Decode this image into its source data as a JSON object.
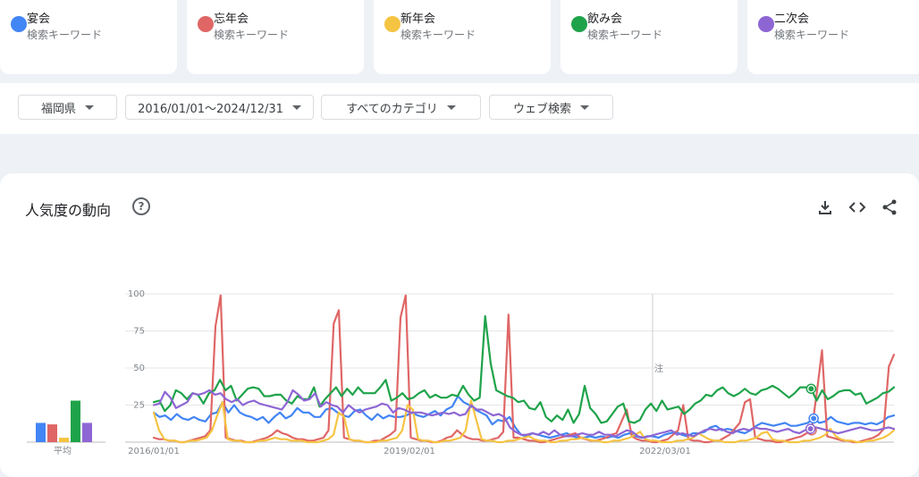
{
  "terms": [
    {
      "name": "宴会",
      "type": "検索キーワード",
      "color": "#4285f4"
    },
    {
      "name": "忘年会",
      "type": "検索キーワード",
      "color": "#e06666"
    },
    {
      "name": "新年会",
      "type": "検索キーワード",
      "color": "#f6c443"
    },
    {
      "name": "飲み会",
      "type": "検索キーワード",
      "color": "#1fa34a"
    },
    {
      "name": "二次会",
      "type": "検索キーワード",
      "color": "#8e66d4"
    }
  ],
  "filters": {
    "region": "福岡県",
    "date_range": "2016/01/01〜2024/12/31",
    "category": "すべてのカテゴリ",
    "search_type": "ウェブ検索"
  },
  "section": {
    "title": "人気度の動向",
    "help_icon": "help-circle-icon",
    "actions": [
      "download-icon",
      "embed-code-icon",
      "share-icon"
    ]
  },
  "chart_data": {
    "type": "line",
    "x_ticks": [
      "2016/01/01",
      "2019/02/01",
      "2022/03/01"
    ],
    "y_ticks": [
      "100",
      "75",
      "50",
      "25"
    ],
    "ylim": [
      0,
      100
    ],
    "grid": true,
    "note_marker": "注",
    "average": {
      "label": "平均",
      "values": [
        13,
        12,
        3,
        28,
        13
      ]
    },
    "series": [
      {
        "name": "宴会",
        "color": "#4285f4",
        "values": [
          20,
          17,
          18,
          15,
          19,
          16,
          15,
          17,
          15,
          14,
          19,
          20,
          27,
          20,
          25,
          20,
          18,
          17,
          15,
          17,
          13,
          17,
          20,
          16,
          18,
          23,
          20,
          20,
          17,
          17,
          22,
          23,
          20,
          18,
          17,
          21,
          22,
          18,
          15,
          19,
          16,
          18,
          17,
          17,
          18,
          20,
          18,
          17,
          19,
          21,
          18,
          22,
          24,
          31,
          27,
          25,
          22,
          20,
          18,
          12,
          15,
          14,
          17,
          10,
          5,
          4,
          6,
          5,
          4,
          3,
          4,
          5,
          6,
          4,
          3,
          3,
          4,
          3,
          4,
          3,
          4,
          3,
          5,
          6,
          4,
          3,
          4,
          4,
          3,
          5,
          6,
          7,
          5,
          4,
          6,
          6,
          7,
          10,
          11,
          8,
          9,
          8,
          7,
          6,
          8,
          11,
          13,
          12,
          11,
          12,
          13,
          11,
          11,
          12,
          13,
          16,
          13,
          14,
          17,
          14,
          13,
          12,
          13,
          13,
          12,
          13,
          12,
          14,
          17,
          18
        ]
      },
      {
        "name": "忘年会",
        "color": "#e06666",
        "values": [
          3,
          2,
          2,
          1,
          1,
          0,
          0,
          1,
          2,
          3,
          4,
          8,
          78,
          99,
          3,
          2,
          1,
          1,
          0,
          0,
          1,
          2,
          3,
          5,
          8,
          6,
          5,
          3,
          2,
          2,
          1,
          1,
          2,
          3,
          8,
          80,
          89,
          3,
          2,
          1,
          1,
          0,
          0,
          1,
          1,
          3,
          5,
          8,
          84,
          99,
          3,
          2,
          1,
          1,
          0,
          0,
          1,
          3,
          4,
          8,
          5,
          3,
          2,
          2,
          1,
          1,
          2,
          3,
          7,
          86,
          3,
          3,
          2,
          1,
          1,
          0,
          0,
          1,
          2,
          3,
          4,
          5,
          6,
          3,
          2,
          1,
          1,
          2,
          3,
          5,
          6,
          14,
          22,
          4,
          2,
          1,
          1,
          0,
          0,
          1,
          2,
          5,
          8,
          25,
          2,
          1,
          1,
          0,
          0,
          1,
          1,
          3,
          5,
          9,
          13,
          27,
          29,
          3,
          2,
          1,
          1,
          0,
          0,
          1,
          2,
          3,
          4,
          6,
          8,
          34,
          62,
          4,
          3,
          2,
          1,
          1,
          0,
          0,
          1,
          2,
          3,
          5,
          9,
          51,
          59
        ]
      },
      {
        "name": "新年会",
        "color": "#f6c443",
        "values": [
          20,
          8,
          2,
          1,
          1,
          0,
          0,
          1,
          1,
          2,
          3,
          8,
          18,
          27,
          2,
          1,
          1,
          0,
          0,
          0,
          1,
          1,
          2,
          3,
          2,
          2,
          1,
          1,
          1,
          0,
          0,
          0,
          1,
          2,
          5,
          20,
          17,
          2,
          1,
          1,
          0,
          0,
          0,
          1,
          1,
          2,
          3,
          8,
          25,
          22,
          2,
          1,
          1,
          0,
          0,
          1,
          1,
          2,
          3,
          8,
          28,
          15,
          2,
          1,
          1,
          0,
          0,
          1,
          1,
          2,
          3,
          4,
          2,
          1,
          1,
          0,
          0,
          1,
          1,
          2,
          2,
          3,
          2,
          1,
          1,
          0,
          0,
          1,
          1,
          2,
          3,
          5,
          7,
          2,
          1,
          1,
          0,
          0,
          0,
          1,
          1,
          2,
          3,
          6,
          4,
          2,
          1,
          1,
          0,
          0,
          0,
          1,
          1,
          2,
          3,
          6,
          7,
          2,
          1,
          1,
          0,
          0,
          0,
          1,
          1,
          2,
          3,
          5,
          9,
          4,
          2,
          1,
          1,
          0,
          0,
          1,
          1,
          2,
          3,
          5,
          8
        ]
      },
      {
        "name": "飲み会",
        "color": "#1fa34a",
        "values": [
          27,
          28,
          21,
          25,
          35,
          33,
          29,
          33,
          32,
          26,
          33,
          35,
          42,
          35,
          38,
          28,
          32,
          36,
          37,
          36,
          31,
          31,
          32,
          32,
          28,
          26,
          31,
          29,
          29,
          37,
          24,
          29,
          33,
          37,
          31,
          36,
          32,
          37,
          33,
          33,
          33,
          37,
          42,
          28,
          30,
          33,
          29,
          30,
          33,
          35,
          30,
          32,
          30,
          30,
          32,
          31,
          38,
          32,
          28,
          30,
          85,
          53,
          35,
          33,
          31,
          30,
          27,
          28,
          23,
          22,
          27,
          17,
          14,
          18,
          15,
          22,
          13,
          19,
          38,
          23,
          19,
          13,
          14,
          19,
          24,
          26,
          14,
          13,
          15,
          22,
          26,
          21,
          28,
          22,
          23,
          24,
          19,
          22,
          26,
          28,
          32,
          31,
          35,
          37,
          33,
          31,
          33,
          36,
          33,
          32,
          35,
          36,
          38,
          36,
          33,
          30,
          33,
          37,
          37,
          36,
          28,
          35,
          29,
          31,
          34,
          35,
          35,
          32,
          33,
          26,
          28,
          30,
          33,
          34,
          37
        ]
      },
      {
        "name": "二次会",
        "color": "#8e66d4",
        "values": [
          25,
          26,
          34,
          30,
          23,
          25,
          27,
          33,
          32,
          33,
          35,
          32,
          33,
          29,
          27,
          29,
          25,
          27,
          28,
          26,
          25,
          24,
          23,
          22,
          27,
          35,
          32,
          28,
          29,
          33,
          24,
          27,
          25,
          24,
          20,
          25,
          22,
          20,
          22,
          23,
          24,
          26,
          25,
          20,
          23,
          22,
          20,
          20,
          20,
          19,
          18,
          19,
          20,
          19,
          20,
          18,
          19,
          25,
          22,
          22,
          20,
          18,
          19,
          17,
          10,
          7,
          5,
          5,
          6,
          5,
          7,
          5,
          8,
          5,
          4,
          4,
          5,
          6,
          5,
          5,
          7,
          5,
          5,
          4,
          6,
          8,
          7,
          4,
          3,
          4,
          5,
          6,
          7,
          8,
          5,
          6,
          5,
          4,
          6,
          8,
          9,
          8,
          9,
          7,
          6,
          8,
          9,
          8,
          10,
          9,
          9,
          8,
          7,
          8,
          9,
          7,
          6,
          8,
          9,
          10,
          9,
          8,
          7,
          6,
          7,
          8,
          9,
          10,
          9,
          8,
          8,
          9,
          10,
          9
        ]
      }
    ]
  }
}
